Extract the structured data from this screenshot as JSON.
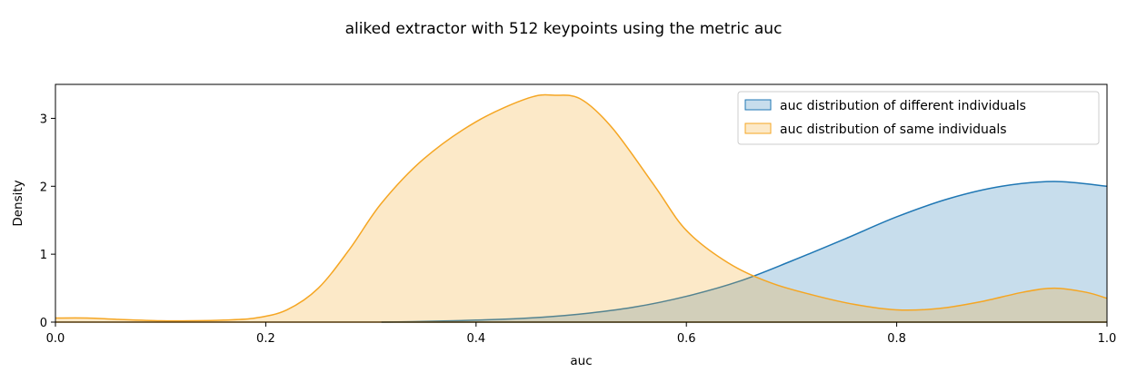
{
  "chart_data": {
    "type": "area",
    "title": "aliked extractor with 512 keypoints using the metric auc",
    "xlabel": "auc",
    "ylabel": "Density",
    "xlim": [
      0.0,
      1.0
    ],
    "ylim": [
      0,
      3.5
    ],
    "x_ticks": [
      "0.0",
      "0.2",
      "0.4",
      "0.6",
      "0.8",
      "1.0"
    ],
    "y_ticks": [
      "0",
      "1",
      "2",
      "3"
    ],
    "grid": false,
    "legend_position": "top-right",
    "series": [
      {
        "name": "auc distribution of different individuals",
        "color": "#1f77b4",
        "fill": "#c6dbef",
        "x": [
          0.31,
          0.35,
          0.4,
          0.45,
          0.5,
          0.55,
          0.6,
          0.65,
          0.7,
          0.75,
          0.8,
          0.85,
          0.9,
          0.95,
          1.0
        ],
        "y": [
          0.0,
          0.01,
          0.03,
          0.06,
          0.12,
          0.22,
          0.38,
          0.6,
          0.9,
          1.22,
          1.55,
          1.82,
          2.0,
          2.07,
          2.0
        ]
      },
      {
        "name": "auc distribution of same individuals",
        "color": "#f5a623",
        "fill": "#fde5bc",
        "x": [
          0.0,
          0.03,
          0.06,
          0.1,
          0.13,
          0.16,
          0.19,
          0.22,
          0.25,
          0.28,
          0.31,
          0.35,
          0.4,
          0.45,
          0.475,
          0.5,
          0.53,
          0.57,
          0.6,
          0.64,
          0.68,
          0.72,
          0.76,
          0.8,
          0.84,
          0.88,
          0.92,
          0.95,
          0.98,
          1.0
        ],
        "y": [
          0.06,
          0.06,
          0.04,
          0.02,
          0.02,
          0.03,
          0.06,
          0.18,
          0.5,
          1.08,
          1.75,
          2.4,
          2.95,
          3.3,
          3.34,
          3.28,
          2.85,
          2.0,
          1.35,
          0.87,
          0.58,
          0.4,
          0.26,
          0.18,
          0.2,
          0.3,
          0.44,
          0.5,
          0.44,
          0.35
        ]
      }
    ]
  }
}
